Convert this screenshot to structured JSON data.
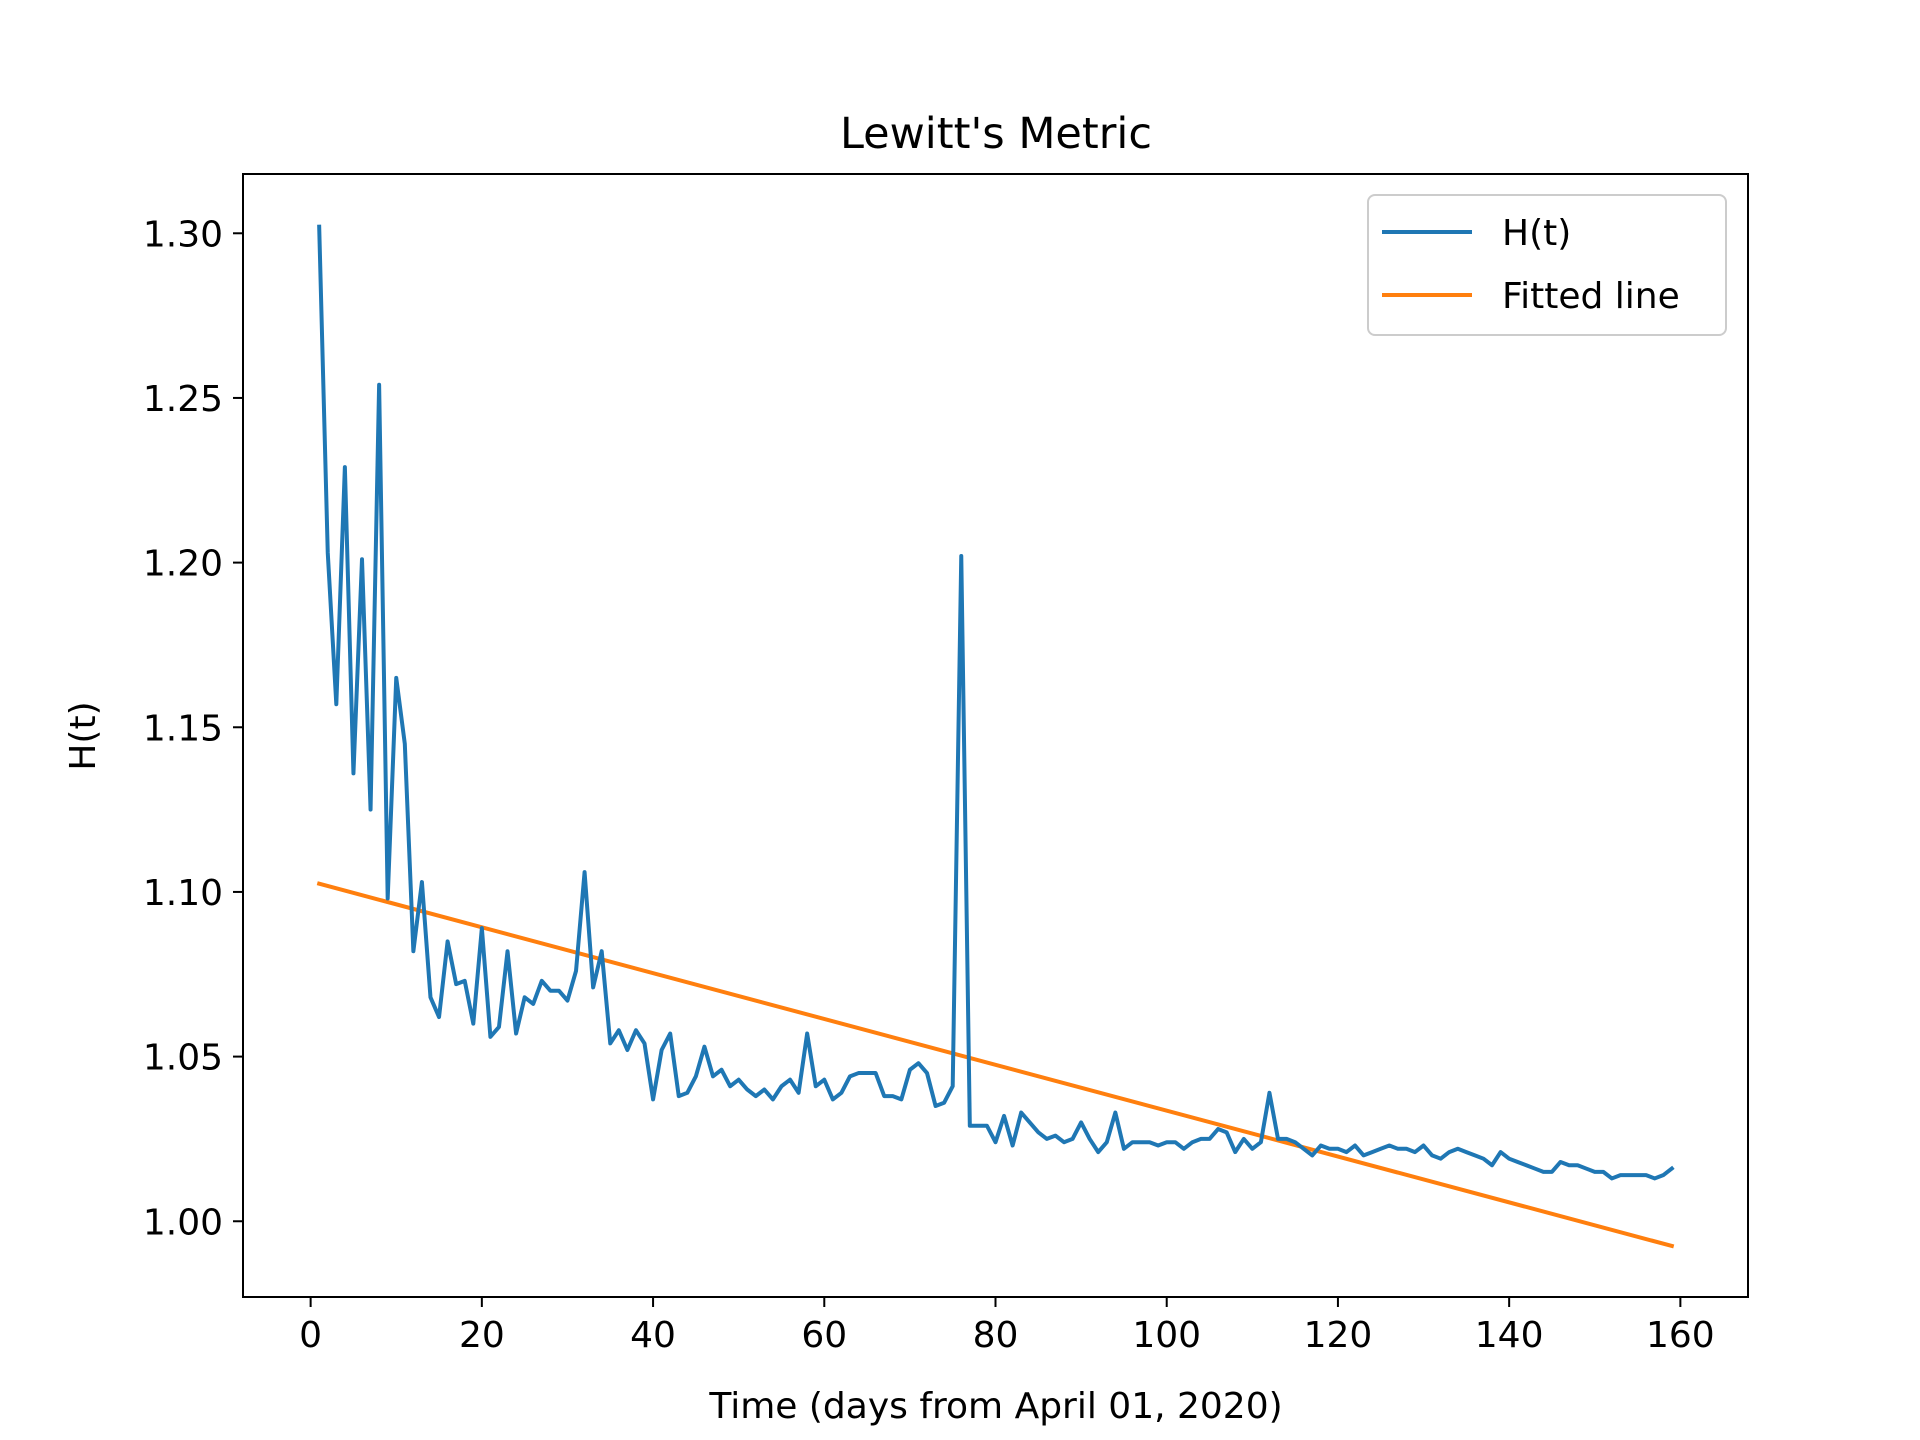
{
  "chart_data": {
    "type": "line",
    "title": "Lewitt's Metric",
    "xlabel": "Time (days from April 01, 2020)",
    "ylabel": "H(t)",
    "xlim": [
      -7.9,
      167.9
    ],
    "ylim": [
      0.977,
      1.318
    ],
    "xticks": [
      0,
      20,
      40,
      60,
      80,
      100,
      120,
      140,
      160
    ],
    "yticks": [
      1.0,
      1.05,
      1.1,
      1.15,
      1.2,
      1.25,
      1.3
    ],
    "grid": false,
    "legend_position": "top-right",
    "series": [
      {
        "name": "H(t)",
        "color": "#1f77b4",
        "x": [
          1,
          2,
          3,
          4,
          5,
          6,
          7,
          8,
          9,
          10,
          11,
          12,
          13,
          14,
          15,
          16,
          17,
          18,
          19,
          20,
          21,
          22,
          23,
          24,
          25,
          26,
          27,
          28,
          29,
          30,
          31,
          32,
          33,
          34,
          35,
          36,
          37,
          38,
          39,
          40,
          41,
          42,
          43,
          44,
          45,
          46,
          47,
          48,
          49,
          50,
          51,
          52,
          53,
          54,
          55,
          56,
          57,
          58,
          59,
          60,
          61,
          62,
          63,
          64,
          65,
          66,
          67,
          68,
          69,
          70,
          71,
          72,
          73,
          74,
          75,
          76,
          77,
          78,
          79,
          80,
          81,
          82,
          83,
          84,
          85,
          86,
          87,
          88,
          89,
          90,
          91,
          92,
          93,
          94,
          95,
          96,
          97,
          98,
          99,
          100,
          101,
          102,
          103,
          104,
          105,
          106,
          107,
          108,
          109,
          110,
          111,
          112,
          113,
          114,
          115,
          116,
          117,
          118,
          119,
          120,
          121,
          122,
          123,
          124,
          125,
          126,
          127,
          128,
          129,
          130,
          131,
          132,
          133,
          134,
          135,
          136,
          137,
          138,
          139,
          140,
          141,
          142,
          143,
          144,
          145,
          146,
          147,
          148,
          149,
          150,
          151,
          152,
          153,
          154,
          155,
          156,
          157,
          158,
          159
        ],
        "y": [
          1.302,
          1.203,
          1.157,
          1.229,
          1.136,
          1.201,
          1.125,
          1.254,
          1.098,
          1.165,
          1.145,
          1.082,
          1.103,
          1.068,
          1.062,
          1.085,
          1.072,
          1.073,
          1.06,
          1.089,
          1.056,
          1.059,
          1.082,
          1.057,
          1.068,
          1.066,
          1.073,
          1.07,
          1.07,
          1.067,
          1.076,
          1.106,
          1.071,
          1.082,
          1.054,
          1.058,
          1.052,
          1.058,
          1.054,
          1.037,
          1.052,
          1.057,
          1.038,
          1.039,
          1.044,
          1.053,
          1.044,
          1.046,
          1.041,
          1.043,
          1.04,
          1.038,
          1.04,
          1.037,
          1.041,
          1.043,
          1.039,
          1.057,
          1.041,
          1.043,
          1.037,
          1.039,
          1.044,
          1.045,
          1.045,
          1.045,
          1.038,
          1.038,
          1.037,
          1.046,
          1.048,
          1.045,
          1.035,
          1.036,
          1.041,
          1.202,
          1.029,
          1.029,
          1.029,
          1.024,
          1.032,
          1.023,
          1.033,
          1.03,
          1.027,
          1.025,
          1.026,
          1.024,
          1.025,
          1.03,
          1.025,
          1.021,
          1.024,
          1.033,
          1.022,
          1.024,
          1.024,
          1.024,
          1.023,
          1.024,
          1.024,
          1.022,
          1.024,
          1.025,
          1.025,
          1.028,
          1.027,
          1.021,
          1.025,
          1.022,
          1.024,
          1.039,
          1.025,
          1.025,
          1.024,
          1.022,
          1.02,
          1.023,
          1.022,
          1.022,
          1.021,
          1.023,
          1.02,
          1.021,
          1.022,
          1.023,
          1.022,
          1.022,
          1.021,
          1.023,
          1.02,
          1.019,
          1.021,
          1.022,
          1.021,
          1.02,
          1.019,
          1.017,
          1.021,
          1.019,
          1.018,
          1.017,
          1.016,
          1.015,
          1.015,
          1.018,
          1.017,
          1.017,
          1.016,
          1.015,
          1.015,
          1.013,
          1.014,
          1.014,
          1.014,
          1.014,
          1.013,
          1.014,
          1.016
        ]
      },
      {
        "name": "Fitted line",
        "color": "#ff7f0e",
        "x": [
          1,
          159
        ],
        "y": [
          1.1025,
          0.9925
        ]
      }
    ]
  }
}
